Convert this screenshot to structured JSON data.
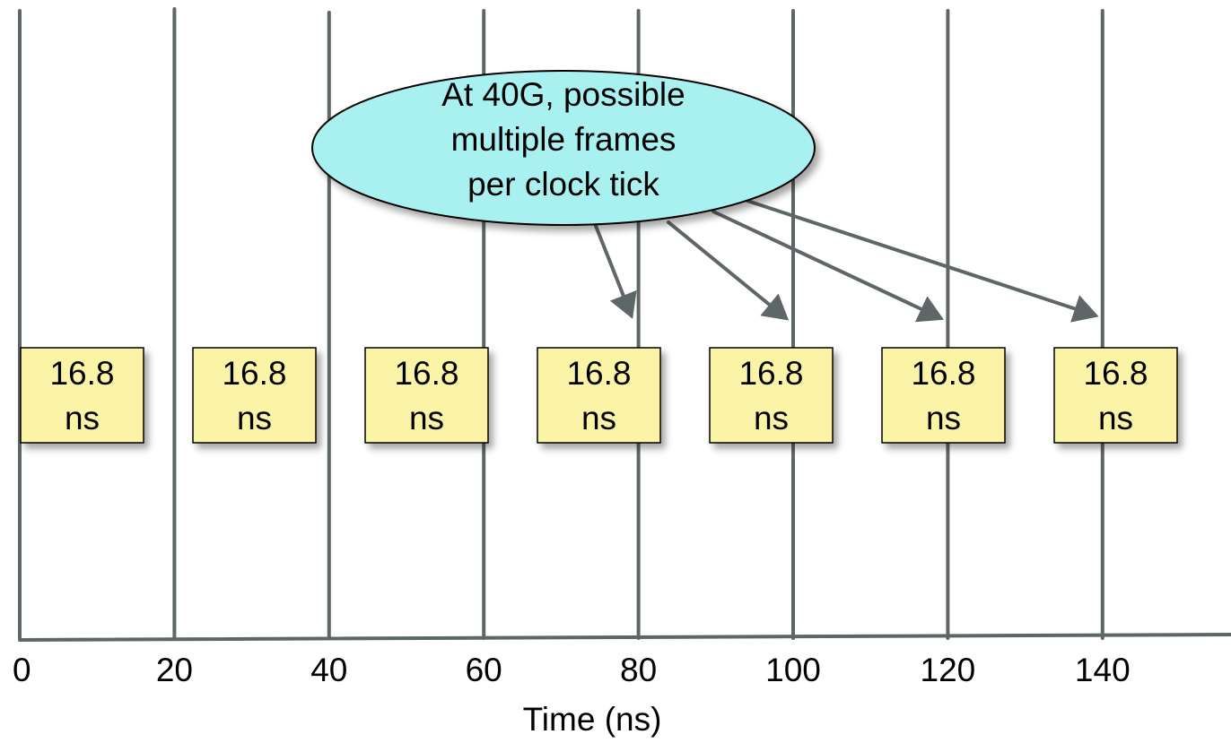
{
  "axis": {
    "title": "Time (ns)",
    "ticks": [
      0,
      20,
      40,
      60,
      80,
      100,
      120,
      140
    ]
  },
  "frames": [
    {
      "value": "16.8",
      "unit": "ns"
    },
    {
      "value": "16.8",
      "unit": "ns"
    },
    {
      "value": "16.8",
      "unit": "ns"
    },
    {
      "value": "16.8",
      "unit": "ns"
    },
    {
      "value": "16.8",
      "unit": "ns"
    },
    {
      "value": "16.8",
      "unit": "ns"
    },
    {
      "value": "16.8",
      "unit": "ns"
    }
  ],
  "callout": {
    "lines": [
      "At 40G, possible",
      "multiple frames",
      "per clock tick"
    ],
    "arrow_targets": [
      80,
      100,
      120,
      140
    ]
  },
  "colors": {
    "line": "#5f6668",
    "frame_fill": "#fbf3a6",
    "callout_fill": "#a9f0f0"
  }
}
